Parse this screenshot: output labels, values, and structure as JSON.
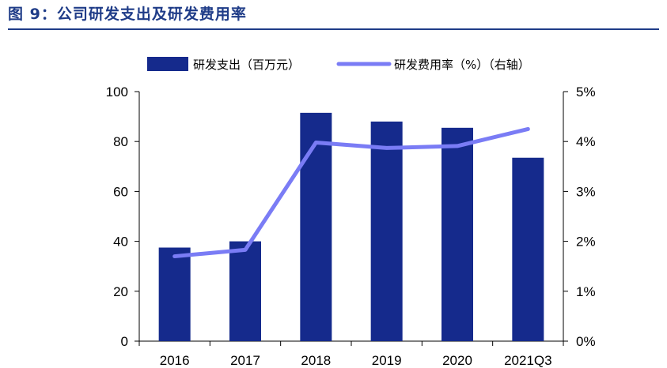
{
  "figure": {
    "title": "图 9：公司研发支出及研发费用率"
  },
  "chart_data": {
    "type": "bar",
    "categories": [
      "2016",
      "2017",
      "2018",
      "2019",
      "2020",
      "2021Q3"
    ],
    "series": [
      {
        "name": "研发支出（百万元）",
        "type": "bar",
        "axis": "left",
        "color": "#152a8c",
        "values": [
          37.5,
          40,
          91.5,
          88,
          85.5,
          73.5
        ]
      },
      {
        "name": "研发费用率（%）（右轴）",
        "type": "line",
        "axis": "right",
        "color": "#7a7cf5",
        "values": [
          1.7,
          1.83,
          3.98,
          3.87,
          3.91,
          4.25
        ]
      }
    ],
    "y_left": {
      "min": 0,
      "max": 100,
      "ticks": [
        0,
        20,
        40,
        60,
        80,
        100
      ],
      "tick_labels": [
        "0",
        "20",
        "40",
        "60",
        "80",
        "100"
      ]
    },
    "y_right": {
      "min": 0,
      "max": 5,
      "ticks": [
        0,
        1,
        2,
        3,
        4,
        5
      ],
      "tick_labels": [
        "0%",
        "1%",
        "2%",
        "3%",
        "4%",
        "5%"
      ]
    },
    "grid": false,
    "legend_position": "top-center"
  }
}
